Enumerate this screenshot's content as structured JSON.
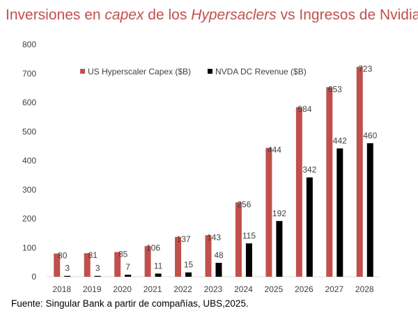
{
  "title": {
    "part1": "Inversiones en ",
    "part2": "capex",
    "part3": " de los ",
    "part4": "Hypersaclers",
    "part5": " vs Ingresos de Nvidia"
  },
  "source": "Fuente: Singular Bank a partir de compañías, UBS,2025.",
  "chart_data": {
    "type": "bar",
    "categories": [
      "2018",
      "2019",
      "2020",
      "2021",
      "2022",
      "2023",
      "2024",
      "2025",
      "2026",
      "2027",
      "2028"
    ],
    "series": [
      {
        "name": "US Hyperscaler Capex ($B)",
        "color": "#c0504d",
        "values": [
          80,
          81,
          85,
          106,
          137,
          143,
          256,
          444,
          584,
          653,
          723
        ]
      },
      {
        "name": "NVDA DC Revenue ($B)",
        "color": "#000000",
        "values": [
          3,
          3,
          7,
          11,
          15,
          48,
          115,
          192,
          342,
          442,
          460
        ]
      }
    ],
    "yticks": [
      "0",
      "100",
      "200",
      "300",
      "400",
      "500",
      "600",
      "700",
      "800"
    ],
    "ylim": [
      0,
      800
    ],
    "grid": false,
    "legend": "top-left"
  }
}
